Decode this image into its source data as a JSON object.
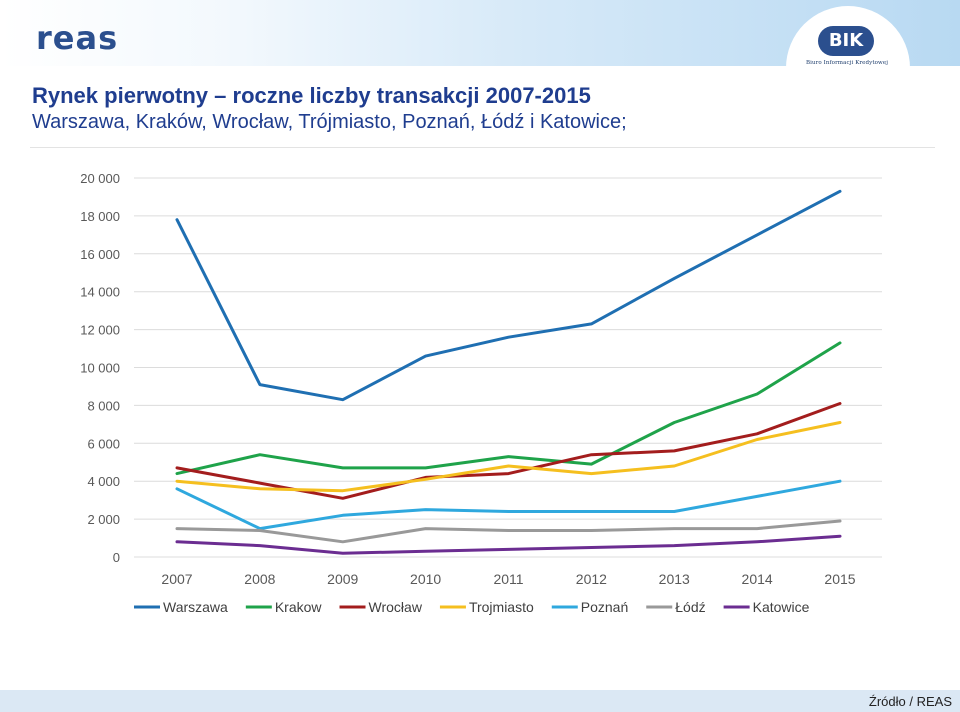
{
  "header": {
    "reas_logo": "reas",
    "bik_logo": "BIK",
    "bik_subtitle": "Biuro Informacji Kredytowej"
  },
  "colors": {
    "brand_blue": "#2b4f8e",
    "title_blue": "#1f3d8f"
  },
  "chart_data": {
    "type": "line",
    "title": "Rynek pierwotny – roczne liczby transakcji  2007-2015",
    "subtitle": "Warszawa, Kraków, Wrocław, Trójmiasto, Poznań, Łódź i Katowice;",
    "categories": [
      "2007",
      "2008",
      "2009",
      "2010",
      "2011",
      "2012",
      "2013",
      "2014",
      "2015"
    ],
    "ylim": [
      0,
      20000
    ],
    "yticks": [
      0,
      2000,
      4000,
      6000,
      8000,
      10000,
      12000,
      14000,
      16000,
      18000,
      20000
    ],
    "ytick_labels": [
      "0",
      "2 000",
      "4 000",
      "6 000",
      "8 000",
      "10 000",
      "12 000",
      "14 000",
      "16 000",
      "18 000",
      "20 000"
    ],
    "grid": true,
    "legend_position": "bottom",
    "series": [
      {
        "name": "Warszawa",
        "color": "#1f6fb2",
        "values": [
          17800,
          9100,
          8300,
          10600,
          11600,
          12300,
          14700,
          17000,
          19300
        ]
      },
      {
        "name": "Krakow",
        "color": "#1fa34a",
        "values": [
          4400,
          5400,
          4700,
          4700,
          5300,
          4900,
          7100,
          8600,
          11300
        ]
      },
      {
        "name": "Wrocław",
        "color": "#a31d1d",
        "values": [
          4700,
          3900,
          3100,
          4200,
          4400,
          5400,
          5600,
          6500,
          8100
        ]
      },
      {
        "name": "Trojmiasto",
        "color": "#f5bf1f",
        "values": [
          4000,
          3600,
          3500,
          4100,
          4800,
          4400,
          4800,
          6200,
          7100
        ]
      },
      {
        "name": "Poznań",
        "color": "#2fa8de",
        "values": [
          3600,
          1500,
          2200,
          2500,
          2400,
          2400,
          2400,
          3200,
          4000
        ]
      },
      {
        "name": "Łódź",
        "color": "#999999",
        "values": [
          1500,
          1400,
          800,
          1500,
          1400,
          1400,
          1500,
          1500,
          1900
        ]
      },
      {
        "name": "Katowice",
        "color": "#6b2d91",
        "values": [
          800,
          600,
          200,
          300,
          400,
          500,
          600,
          800,
          1100
        ]
      }
    ]
  },
  "footer": {
    "source": "Źródło / REAS"
  }
}
